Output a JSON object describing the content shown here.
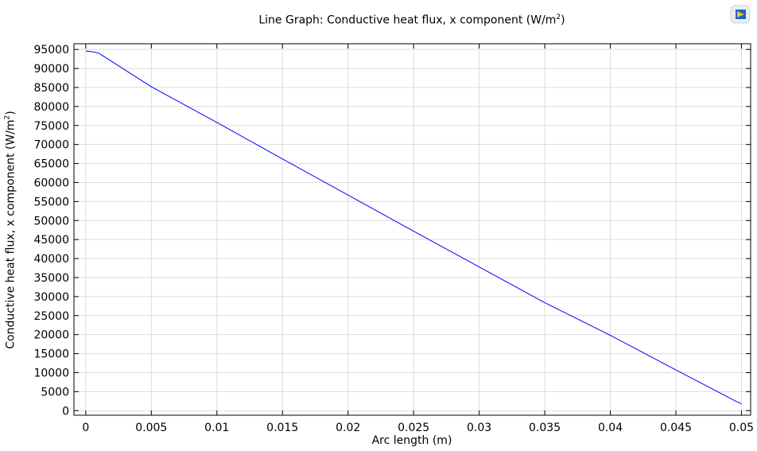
{
  "chart_data": {
    "type": "line",
    "title": "Line Graph: Conductive heat flux, x component (W/m",
    "title_sup": "2",
    "title_suffix": ")",
    "xlabel": "Arc length (m)",
    "ylabel": "Conductive heat flux, x component (W/m",
    "ylabel_sup": "2",
    "ylabel_suffix": ")",
    "xlim": [
      -0.0009,
      0.0507
    ],
    "ylim": [
      -1200,
      96500
    ],
    "grid": true,
    "x_ticks": [
      "0",
      "0.005",
      "0.01",
      "0.015",
      "0.02",
      "0.025",
      "0.03",
      "0.035",
      "0.04",
      "0.045",
      "0.05"
    ],
    "y_ticks": [
      "0",
      "5000",
      "10000",
      "15000",
      "20000",
      "25000",
      "30000",
      "35000",
      "40000",
      "45000",
      "50000",
      "55000",
      "60000",
      "65000",
      "70000",
      "75000",
      "80000",
      "85000",
      "90000",
      "95000"
    ],
    "series": [
      {
        "color": "#0000ff",
        "x": [
          0,
          0.0005,
          0.001,
          0.005,
          0.01,
          0.015,
          0.02,
          0.025,
          0.03,
          0.035,
          0.04,
          0.045,
          0.0495,
          0.05
        ],
        "y": [
          94600,
          94400,
          94000,
          85200,
          75800,
          66200,
          56700,
          47200,
          37800,
          28400,
          19800,
          10700,
          2600,
          1800
        ]
      }
    ]
  },
  "toolbar": {
    "logo_icon": "comsol-logo-icon"
  }
}
